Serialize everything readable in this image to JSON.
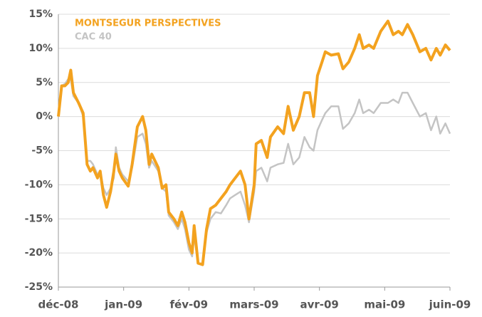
{
  "chart_data": {
    "type": "line",
    "x": [
      0,
      0.05,
      0.1,
      0.15,
      0.19,
      0.23,
      0.31,
      0.38,
      0.44,
      0.49,
      0.53,
      0.6,
      0.64,
      0.69,
      0.74,
      0.8,
      0.85,
      0.88,
      0.93,
      0.98,
      1.07,
      1.13,
      1.21,
      1.29,
      1.34,
      1.39,
      1.43,
      1.53,
      1.59,
      1.65,
      1.69,
      1.77,
      1.83,
      1.89,
      1.94,
      2.0,
      2.05,
      2.08,
      2.14,
      2.21,
      2.27,
      2.33,
      2.41,
      2.49,
      2.57,
      2.63,
      2.71,
      2.79,
      2.86,
      2.92,
      3.0,
      3.03,
      3.11,
      3.2,
      3.25,
      3.36,
      3.45,
      3.52,
      3.6,
      3.69,
      3.77,
      3.85,
      3.91,
      3.97,
      4.04,
      4.09,
      4.18,
      4.29,
      4.36,
      4.45,
      4.54,
      4.61,
      4.67,
      4.76,
      4.83,
      4.94,
      5.05,
      5.13,
      5.21,
      5.27,
      5.35,
      5.43,
      5.54,
      5.63,
      5.71,
      5.79,
      5.85,
      5.93,
      6.0
    ],
    "series": [
      {
        "name": "CAC 40",
        "color": "#c4c4c4",
        "values": [
          0,
          4.5,
          4.8,
          5.5,
          5.5,
          3,
          2,
          0,
          -6.5,
          -6.5,
          -7,
          -8.5,
          -8,
          -10.5,
          -11.5,
          -10.5,
          -9,
          -4.5,
          -7.5,
          -8.5,
          -9.5,
          -7.5,
          -3,
          -2.5,
          -4,
          -7.5,
          -6.5,
          -8,
          -10.5,
          -11,
          -14.5,
          -15.5,
          -16.5,
          -15,
          -16.5,
          -19.5,
          -20.5,
          -17.5,
          -21.5,
          -21.8,
          -17,
          -15,
          -14,
          -14.2,
          -13,
          -12,
          -11.5,
          -11,
          -13,
          -15.5,
          -11,
          -8,
          -7.5,
          -9.5,
          -7.5,
          -7,
          -6.8,
          -4,
          -7,
          -6,
          -3,
          -4.5,
          -5,
          -2,
          -0.5,
          0.5,
          1.5,
          1.5,
          -1.8,
          -1,
          0.5,
          2.5,
          0.5,
          1,
          0.5,
          2,
          2,
          2.5,
          2,
          3.5,
          3.5,
          2,
          0,
          0.5,
          -2,
          0,
          -2.5,
          -1,
          -2.5
        ]
      },
      {
        "name": "MONTSEGUR PERSPECTIVES",
        "color": "#f3a21f",
        "values": [
          0,
          4.5,
          4.5,
          5,
          6.8,
          3.5,
          2,
          0.5,
          -7,
          -8,
          -7.5,
          -9,
          -8,
          -11.5,
          -13.3,
          -11,
          -8,
          -5.5,
          -8,
          -9,
          -10.2,
          -7,
          -1.5,
          0,
          -2,
          -7,
          -5.5,
          -7.5,
          -10.5,
          -10,
          -14,
          -15,
          -16,
          -14,
          -15.5,
          -18.5,
          -20,
          -16,
          -21.5,
          -21.7,
          -16.5,
          -13.5,
          -13,
          -12,
          -11,
          -10,
          -9,
          -8,
          -10,
          -15,
          -10,
          -4,
          -3.5,
          -6,
          -3,
          -1.5,
          -2.5,
          1.5,
          -2,
          0,
          3.5,
          3.5,
          0,
          6,
          8,
          9.5,
          9,
          9.2,
          7,
          8,
          10,
          12,
          10,
          10.5,
          10,
          12.5,
          14,
          12,
          12.5,
          12,
          13.5,
          12,
          9.5,
          10,
          8.3,
          10,
          9,
          10.5,
          9.7
        ]
      }
    ],
    "xlim": [
      0,
      6
    ],
    "xticks": [
      {
        "value": 0,
        "label": "déc-08"
      },
      {
        "value": 1,
        "label": "jan-09"
      },
      {
        "value": 2,
        "label": "fév-09"
      },
      {
        "value": 3,
        "label": "mars-09"
      },
      {
        "value": 4,
        "label": "avr-09"
      },
      {
        "value": 5,
        "label": "mai-09"
      },
      {
        "value": 6,
        "label": "juin-09"
      }
    ],
    "ylim": [
      -25,
      15
    ],
    "yticks": [
      {
        "value": -25,
        "label": "-25%"
      },
      {
        "value": -20,
        "label": "-20%"
      },
      {
        "value": -15,
        "label": "-15%"
      },
      {
        "value": -10,
        "label": "-10%"
      },
      {
        "value": -5,
        "label": "-5%"
      },
      {
        "value": 0,
        "label": "0%"
      },
      {
        "value": 5,
        "label": "5%"
      },
      {
        "value": 10,
        "label": "10%"
      },
      {
        "value": 15,
        "label": "15%"
      }
    ],
    "grid": true,
    "legend": "upper left"
  }
}
